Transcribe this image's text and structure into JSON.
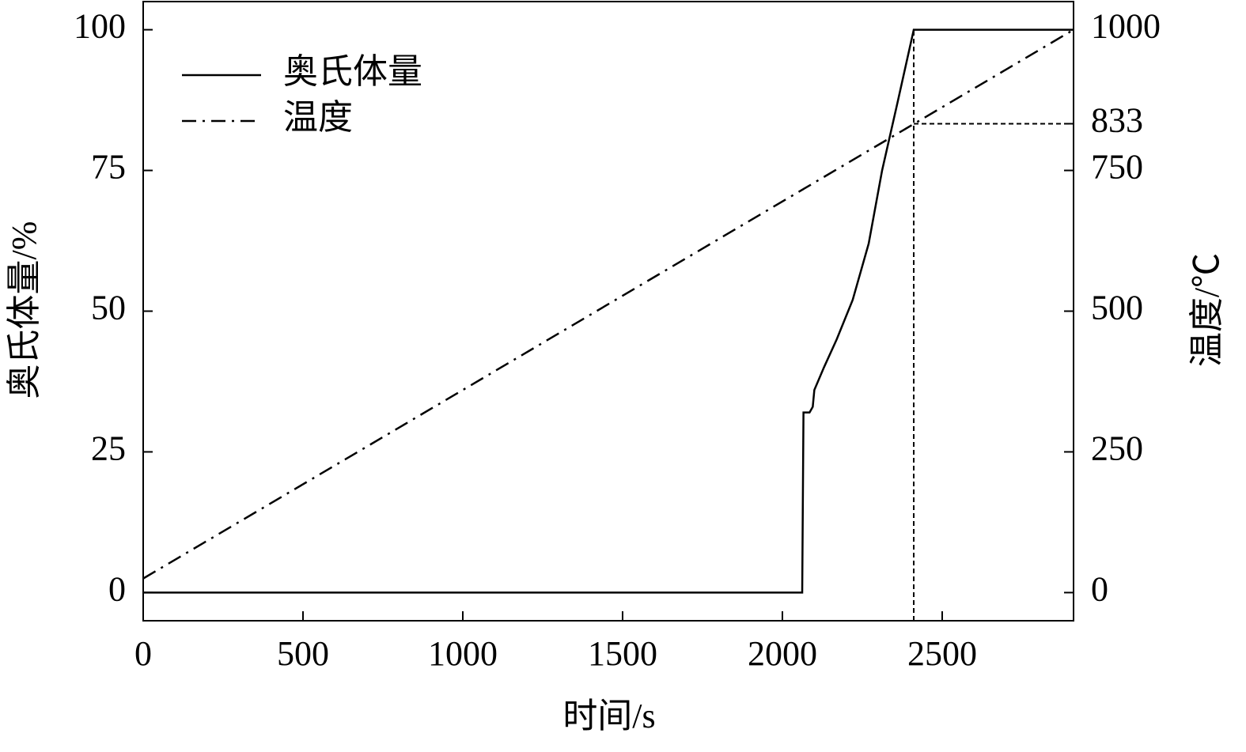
{
  "chart_data": {
    "type": "line",
    "x_label": "时间/s",
    "y_label": "奥氏体量/%",
    "y2_label": "温度/℃",
    "xlim": [
      0,
      2911
    ],
    "xticks": [
      0,
      500,
      1000,
      1500,
      2000,
      2500
    ],
    "ylim": [
      -5,
      105
    ],
    "yticks": [
      0,
      25,
      50,
      75,
      100
    ],
    "y2lim": [
      -50,
      1050
    ],
    "y2ticks": [
      0,
      250,
      500,
      750,
      833,
      1000
    ],
    "legend": "upper left",
    "series": [
      {
        "name": "奥氏体量",
        "color": "#000000",
        "line_style": "solid",
        "x": [
          0,
          2062,
          2066,
          2085,
          2095,
          2100,
          2130,
          2170,
          2220,
          2270,
          2312,
          2360,
          2411,
          2911
        ],
        "values": [
          0,
          0,
          32,
          32,
          33,
          36,
          40,
          45,
          52,
          62,
          75,
          87,
          100,
          100
        ]
      },
      {
        "name": "温度",
        "color": "#000000",
        "line_style": "dashdot",
        "axis": "y2",
        "x": [
          0,
          2911
        ],
        "values": [
          25,
          1000
        ]
      }
    ],
    "reference_x": 2411,
    "reference_y2": 833
  }
}
